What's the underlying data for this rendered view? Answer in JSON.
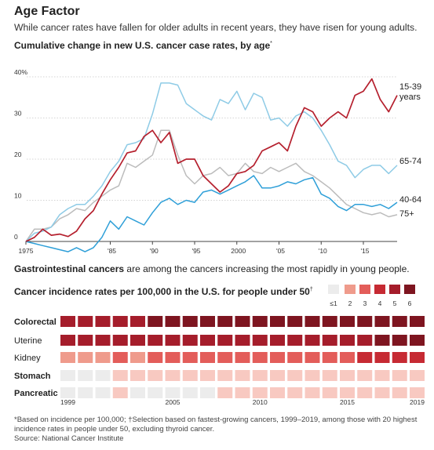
{
  "header": {
    "title": "Age Factor",
    "subtitle": "While cancer rates have fallen for older adults in recent years, they have risen for young adults."
  },
  "line_chart": {
    "title": "Cumulative change in new U.S. cancer case rates, by age",
    "title_footnote": "*"
  },
  "gi_note": {
    "bold": "Gastrointestinal cancers",
    "rest": " are among the cancers increasing the most rapidly in young people."
  },
  "heatmap": {
    "title": "Cancer incidence rates per 100,000 in the U.S. for people under 50",
    "title_footnote": "†"
  },
  "footnotes": {
    "line1": "*Based on incidence per 100,000; †Selection based on fastest-growing cancers, 1999–2019, among those with 20 highest",
    "line2": "incidence rates in people under 50, excluding thyroid cancer.",
    "source": "Source: National Cancer Institute"
  },
  "colors": {
    "red": "#b5202e",
    "light_blue": "#8ecbe6",
    "blue": "#2e9fd8",
    "gray": "#bcbcbc",
    "heat": [
      "#ececec",
      "#f8c9c1",
      "#ef9b8c",
      "#e35d5a",
      "#c62a33",
      "#a51d2b",
      "#7e1520"
    ]
  },
  "chart_data": [
    {
      "type": "line",
      "title": "Cumulative change in new U.S. cancer case rates, by age",
      "xlabel": "",
      "ylabel": "",
      "ylim": [
        -3,
        42
      ],
      "xlim": [
        1975,
        2019
      ],
      "x_ticks": [
        "1975",
        "'85",
        "'90",
        "'95",
        "2000",
        "'05",
        "'10",
        "'15"
      ],
      "x_tick_values": [
        1975,
        1985,
        1990,
        1995,
        2000,
        2005,
        2010,
        2015
      ],
      "y_ticks": [
        "0",
        "10",
        "20",
        "30",
        "40%"
      ],
      "y_tick_values": [
        0,
        10,
        20,
        30,
        40
      ],
      "grid": true,
      "series": [
        {
          "name": "15-39 years",
          "label_lines": [
            "15-39",
            "years"
          ],
          "color": "#b5202e",
          "points": [
            [
              1975,
              0
            ],
            [
              1976,
              1
            ],
            [
              1977,
              3
            ],
            [
              1978,
              1.5
            ],
            [
              1979,
              1.8
            ],
            [
              1980,
              1.2
            ],
            [
              1981,
              2.5
            ],
            [
              1982,
              5.5
            ],
            [
              1983,
              7.5
            ],
            [
              1984,
              11.5
            ],
            [
              1985,
              15
            ],
            [
              1986,
              18
            ],
            [
              1987,
              21.5
            ],
            [
              1988,
              22
            ],
            [
              1989,
              25.5
            ],
            [
              1990,
              27
            ],
            [
              1991,
              24
            ],
            [
              1992,
              26.5
            ],
            [
              1993,
              19
            ],
            [
              1994,
              20
            ],
            [
              1995,
              20
            ],
            [
              1996,
              16
            ],
            [
              1997,
              14
            ],
            [
              1998,
              12
            ],
            [
              1999,
              13.5
            ],
            [
              2000,
              16.5
            ],
            [
              2001,
              17
            ],
            [
              2002,
              18.5
            ],
            [
              2003,
              22
            ],
            [
              2004,
              23
            ],
            [
              2005,
              24
            ],
            [
              2006,
              22
            ],
            [
              2007,
              28
            ],
            [
              2008,
              32.5
            ],
            [
              2009,
              31.5
            ],
            [
              2010,
              28
            ],
            [
              2011,
              30
            ],
            [
              2012,
              31.5
            ],
            [
              2013,
              30
            ],
            [
              2014,
              35.5
            ],
            [
              2015,
              36.5
            ],
            [
              2016,
              39.5
            ],
            [
              2017,
              34.5
            ],
            [
              2018,
              31.5
            ],
            [
              2019,
              35.5
            ]
          ]
        },
        {
          "name": "65-74",
          "label_lines": [
            "65-74"
          ],
          "color": "#8ecbe6",
          "points": [
            [
              1975,
              0
            ],
            [
              1976,
              2
            ],
            [
              1977,
              2.5
            ],
            [
              1978,
              3.5
            ],
            [
              1979,
              6.5
            ],
            [
              1980,
              8
            ],
            [
              1981,
              9
            ],
            [
              1982,
              9
            ],
            [
              1983,
              11
            ],
            [
              1984,
              13.5
            ],
            [
              1985,
              17
            ],
            [
              1986,
              19.5
            ],
            [
              1987,
              23.5
            ],
            [
              1988,
              24
            ],
            [
              1989,
              25
            ],
            [
              1990,
              31
            ],
            [
              1991,
              38.5
            ],
            [
              1992,
              38.5
            ],
            [
              1993,
              38
            ],
            [
              1994,
              33.5
            ],
            [
              1995,
              32
            ],
            [
              1996,
              30.5
            ],
            [
              1997,
              29.5
            ],
            [
              1998,
              34.5
            ],
            [
              1999,
              33.5
            ],
            [
              2000,
              36.5
            ],
            [
              2001,
              32
            ],
            [
              2002,
              36
            ],
            [
              2003,
              35
            ],
            [
              2004,
              29.5
            ],
            [
              2005,
              30
            ],
            [
              2006,
              28
            ],
            [
              2007,
              30.5
            ],
            [
              2008,
              31.5
            ],
            [
              2009,
              30
            ],
            [
              2010,
              27
            ],
            [
              2011,
              23.5
            ],
            [
              2012,
              19.5
            ],
            [
              2013,
              18.5
            ],
            [
              2014,
              15.5
            ],
            [
              2015,
              17.5
            ],
            [
              2016,
              18.5
            ],
            [
              2017,
              18.5
            ],
            [
              2018,
              16.5
            ],
            [
              2019,
              18.5
            ]
          ]
        },
        {
          "name": "40-64",
          "label_lines": [
            "40-64"
          ],
          "color": "#2e9fd8",
          "points": [
            [
              1975,
              0
            ],
            [
              1976,
              -0.5
            ],
            [
              1977,
              -1
            ],
            [
              1978,
              -1.5
            ],
            [
              1979,
              -2
            ],
            [
              1980,
              -2.5
            ],
            [
              1981,
              -1.5
            ],
            [
              1982,
              -2.5
            ],
            [
              1983,
              -1.5
            ],
            [
              1984,
              1
            ],
            [
              1985,
              5
            ],
            [
              1986,
              3
            ],
            [
              1987,
              6
            ],
            [
              1988,
              5
            ],
            [
              1989,
              4
            ],
            [
              1990,
              7
            ],
            [
              1991,
              9.5
            ],
            [
              1992,
              10.5
            ],
            [
              1993,
              9
            ],
            [
              1994,
              10
            ],
            [
              1995,
              9.5
            ],
            [
              1996,
              12
            ],
            [
              1997,
              12.5
            ],
            [
              1998,
              11.5
            ],
            [
              1999,
              12.5
            ],
            [
              2000,
              13.5
            ],
            [
              2001,
              14.5
            ],
            [
              2002,
              16
            ],
            [
              2003,
              13
            ],
            [
              2004,
              13
            ],
            [
              2005,
              13.5
            ],
            [
              2006,
              14.5
            ],
            [
              2007,
              14
            ],
            [
              2008,
              15
            ],
            [
              2009,
              15.5
            ],
            [
              2010,
              11.5
            ],
            [
              2011,
              10.5
            ],
            [
              2012,
              8.5
            ],
            [
              2013,
              7.5
            ],
            [
              2014,
              9
            ],
            [
              2015,
              9
            ],
            [
              2016,
              8.5
            ],
            [
              2017,
              9
            ],
            [
              2018,
              8
            ],
            [
              2019,
              9.5
            ]
          ]
        },
        {
          "name": "75+",
          "label_lines": [
            "75+"
          ],
          "color": "#bcbcbc",
          "points": [
            [
              1975,
              0
            ],
            [
              1976,
              3
            ],
            [
              1977,
              3
            ],
            [
              1978,
              3.5
            ],
            [
              1979,
              5.5
            ],
            [
              1980,
              6.5
            ],
            [
              1981,
              8
            ],
            [
              1982,
              7.5
            ],
            [
              1983,
              9.5
            ],
            [
              1984,
              11
            ],
            [
              1985,
              12.5
            ],
            [
              1986,
              13.5
            ],
            [
              1987,
              19
            ],
            [
              1988,
              18
            ],
            [
              1989,
              19.5
            ],
            [
              1990,
              21
            ],
            [
              1991,
              27
            ],
            [
              1992,
              27
            ],
            [
              1993,
              21
            ],
            [
              1994,
              16
            ],
            [
              1995,
              14
            ],
            [
              1996,
              16
            ],
            [
              1997,
              16.5
            ],
            [
              1998,
              18
            ],
            [
              1999,
              16
            ],
            [
              2000,
              16.5
            ],
            [
              2001,
              19
            ],
            [
              2002,
              17
            ],
            [
              2003,
              16.5
            ],
            [
              2004,
              18
            ],
            [
              2005,
              17
            ],
            [
              2006,
              18
            ],
            [
              2007,
              19
            ],
            [
              2008,
              17
            ],
            [
              2009,
              16
            ],
            [
              2010,
              14.5
            ],
            [
              2011,
              13
            ],
            [
              2012,
              11
            ],
            [
              2013,
              9
            ],
            [
              2014,
              8
            ],
            [
              2015,
              7
            ],
            [
              2016,
              6.5
            ],
            [
              2017,
              7
            ],
            [
              2018,
              6
            ],
            [
              2019,
              6.5
            ]
          ]
        }
      ]
    },
    {
      "type": "heatmap",
      "title": "Cancer incidence rates per 100,000 in the U.S. for people under 50",
      "x_years": [
        1999,
        2000,
        2001,
        2002,
        2003,
        2004,
        2005,
        2006,
        2007,
        2008,
        2009,
        2010,
        2011,
        2012,
        2013,
        2014,
        2015,
        2016,
        2017,
        2018,
        2019
      ],
      "x_tick_labels": [
        "1999",
        "2005",
        "2010",
        "2015",
        "2019"
      ],
      "x_tick_years": [
        1999,
        2005,
        2010,
        2015,
        2019
      ],
      "legend_labels": [
        "≤1",
        "2",
        "3",
        "4",
        "5",
        "6"
      ],
      "legend_levels": [
        0,
        2,
        3,
        4,
        5,
        6
      ],
      "rows": [
        {
          "name": "Colorectal",
          "bold": true,
          "values": [
            5,
            5,
            5,
            5,
            5,
            6,
            6,
            6,
            6,
            6,
            6,
            6,
            6,
            6,
            6,
            6,
            6,
            6,
            6,
            6,
            6
          ]
        },
        {
          "name": "Uterine",
          "bold": false,
          "values": [
            5,
            5,
            5,
            5,
            5,
            5,
            5,
            5,
            5,
            5,
            5,
            5,
            5,
            5,
            5,
            5,
            5,
            5,
            6,
            6,
            6
          ]
        },
        {
          "name": "Kidney",
          "bold": false,
          "values": [
            2,
            2,
            2,
            3,
            2,
            3,
            3,
            3,
            3,
            3,
            3,
            3,
            3,
            3,
            3,
            3,
            3,
            4,
            4,
            4,
            4
          ]
        },
        {
          "name": "Stomach",
          "bold": true,
          "values": [
            0,
            0,
            0,
            1,
            1,
            1,
            1,
            1,
            1,
            1,
            1,
            1,
            1,
            1,
            1,
            1,
            1,
            1,
            1,
            1,
            1
          ]
        },
        {
          "name": "Pancreatic",
          "bold": true,
          "values": [
            0,
            0,
            0,
            1,
            0,
            0,
            0,
            0,
            0,
            1,
            1,
            1,
            1,
            1,
            1,
            1,
            1,
            1,
            1,
            1,
            1
          ]
        }
      ]
    }
  ]
}
